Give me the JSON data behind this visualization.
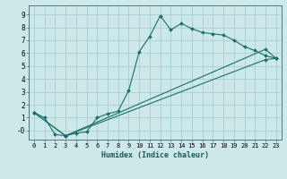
{
  "xlabel": "Humidex (Indice chaleur)",
  "bg_color": "#cce8e8",
  "grid_color": "#aad0d0",
  "line_color": "#1a6e6e",
  "xlim": [
    -0.5,
    23.5
  ],
  "ylim": [
    -0.7,
    9.7
  ],
  "xticks": [
    0,
    1,
    2,
    3,
    4,
    5,
    6,
    7,
    8,
    9,
    10,
    11,
    12,
    13,
    14,
    15,
    16,
    17,
    18,
    19,
    20,
    21,
    22,
    23
  ],
  "yticks": [
    0,
    1,
    2,
    3,
    4,
    5,
    6,
    7,
    8,
    9
  ],
  "ytick_labels": [
    "-0",
    "1",
    "2",
    "3",
    "4",
    "5",
    "6",
    "7",
    "8",
    "9"
  ],
  "line1_x": [
    0,
    1,
    2,
    3,
    4,
    5,
    6,
    7,
    8,
    9,
    10,
    11,
    12,
    13,
    14,
    15,
    16,
    17,
    18,
    19,
    20,
    21,
    22,
    23
  ],
  "line1_y": [
    1.4,
    1.0,
    -0.3,
    -0.4,
    -0.2,
    -0.1,
    1.0,
    1.3,
    1.5,
    3.1,
    6.1,
    7.3,
    8.9,
    7.8,
    8.3,
    7.9,
    7.6,
    7.5,
    7.4,
    7.0,
    6.5,
    6.2,
    5.8,
    5.6
  ],
  "line2_x": [
    0,
    3,
    22,
    23
  ],
  "line2_y": [
    1.4,
    -0.4,
    6.3,
    5.6
  ],
  "line3_x": [
    0,
    3,
    22,
    23
  ],
  "line3_y": [
    1.4,
    -0.4,
    5.5,
    5.6
  ],
  "marker_size": 2.0,
  "line_width": 0.8,
  "tick_fontsize": 5.0,
  "xlabel_fontsize": 6.0
}
